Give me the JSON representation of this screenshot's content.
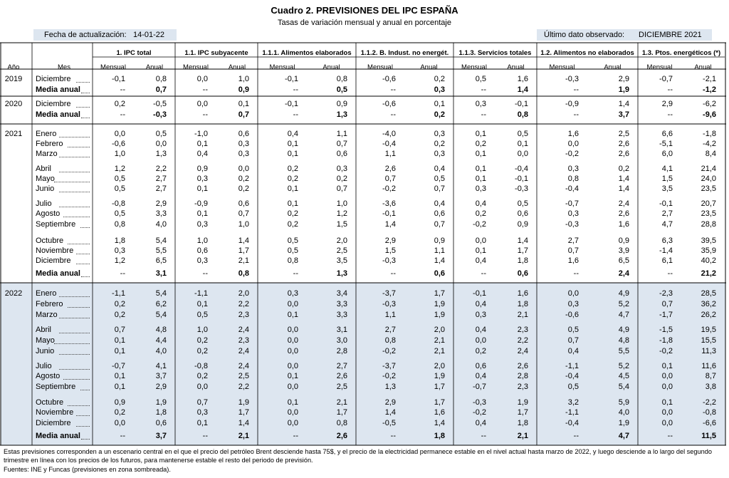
{
  "title": "Cuadro 2. PREVISIONES DEL IPC ESPAÑA",
  "subtitle": "Tasas de variación mensual y anual en porcentaje",
  "update_label": "Fecha de actualización:",
  "update_value": "14-01-22",
  "last_label": "Último dato observado:",
  "last_value": "DICIEMBRE 2021",
  "head": {
    "year": "Año",
    "month": "Mes",
    "groups": [
      "1. IPC total",
      "1.1. IPC subyacente",
      "1.1.1. Alimentos elaborados",
      "1.1.2. B. Indust. no energét.",
      "1.1.3. Servicios totales",
      "1.2. Alimentos no elaborados",
      "1.3. Ptos. energéticos (*)"
    ],
    "mensual": "Mensual",
    "anual": "Anual"
  },
  "rows": [
    {
      "year": "2019",
      "label": "Diciembre",
      "v": [
        "-0,1",
        "0,8",
        "0,0",
        "1,0",
        "-0,1",
        "0,8",
        "-0,6",
        "0,2",
        "0,5",
        "1,6",
        "-0,3",
        "2,9",
        "-0,7",
        "-2,1"
      ]
    },
    {
      "year": "",
      "label": "Media anual",
      "bold": true,
      "v": [
        "--",
        "0,7",
        "--",
        "0,9",
        "--",
        "0,5",
        "--",
        "0,3",
        "--",
        "1,4",
        "--",
        "1,9",
        "--",
        "-1,2"
      ]
    },
    {
      "year": "2020",
      "label": "Diciembre",
      "v": [
        "0,2",
        "-0,5",
        "0,0",
        "0,1",
        "-0,1",
        "0,9",
        "-0,6",
        "0,1",
        "0,3",
        "-0,1",
        "-0,9",
        "1,4",
        "2,9",
        "-6,2"
      ]
    },
    {
      "year": "",
      "label": "Media anual",
      "bold": true,
      "v": [
        "--",
        "-0,3",
        "--",
        "0,7",
        "--",
        "1,3",
        "--",
        "0,2",
        "--",
        "0,8",
        "--",
        "3,7",
        "--",
        "-9,6"
      ]
    },
    {
      "year": "2021",
      "label": "Enero",
      "v": [
        "0,0",
        "0,5",
        "-1,0",
        "0,6",
        "0,4",
        "1,1",
        "-4,0",
        "0,3",
        "0,1",
        "0,5",
        "1,6",
        "2,5",
        "6,6",
        "-1,8"
      ]
    },
    {
      "year": "",
      "label": "Febrero",
      "v": [
        "-0,6",
        "0,0",
        "0,1",
        "0,3",
        "0,1",
        "0,7",
        "-0,4",
        "0,2",
        "0,2",
        "0,1",
        "0,0",
        "2,6",
        "-5,1",
        "-4,2"
      ]
    },
    {
      "year": "",
      "label": "Marzo",
      "v": [
        "1,0",
        "1,3",
        "0,4",
        "0,3",
        "0,1",
        "0,6",
        "1,1",
        "0,3",
        "0,1",
        "0,0",
        "-0,2",
        "2,6",
        "6,0",
        "8,4"
      ]
    },
    {
      "year": "",
      "label": "Abril",
      "v": [
        "1,2",
        "2,2",
        "0,9",
        "0,0",
        "0,2",
        "0,3",
        "2,6",
        "0,4",
        "0,1",
        "-0,4",
        "0,3",
        "0,2",
        "4,1",
        "21,4"
      ]
    },
    {
      "year": "",
      "label": "Mayo",
      "v": [
        "0,5",
        "2,7",
        "0,3",
        "0,2",
        "0,2",
        "0,2",
        "0,7",
        "0,5",
        "0,1",
        "-0,1",
        "0,8",
        "1,4",
        "1,5",
        "24,0"
      ]
    },
    {
      "year": "",
      "label": "Junio",
      "v": [
        "0,5",
        "2,7",
        "0,1",
        "0,2",
        "0,1",
        "0,7",
        "-0,2",
        "0,7",
        "0,3",
        "-0,3",
        "-0,4",
        "1,4",
        "3,5",
        "23,5"
      ]
    },
    {
      "year": "",
      "label": "Julio",
      "v": [
        "-0,8",
        "2,9",
        "-0,9",
        "0,6",
        "0,1",
        "1,0",
        "-3,6",
        "0,4",
        "0,4",
        "0,5",
        "-0,7",
        "2,4",
        "-0,1",
        "20,7"
      ]
    },
    {
      "year": "",
      "label": "Agosto",
      "v": [
        "0,5",
        "3,3",
        "0,1",
        "0,7",
        "0,2",
        "1,2",
        "-0,1",
        "0,6",
        "0,2",
        "0,6",
        "0,3",
        "2,6",
        "2,7",
        "23,5"
      ]
    },
    {
      "year": "",
      "label": "Septiembre",
      "v": [
        "0,8",
        "4,0",
        "0,3",
        "1,0",
        "0,2",
        "1,5",
        "1,4",
        "0,7",
        "-0,2",
        "0,9",
        "-0,3",
        "1,6",
        "4,7",
        "28,8"
      ]
    },
    {
      "year": "",
      "label": "Octubre",
      "v": [
        "1,8",
        "5,4",
        "1,0",
        "1,4",
        "0,5",
        "2,0",
        "2,9",
        "0,9",
        "0,0",
        "1,4",
        "2,7",
        "0,9",
        "6,3",
        "39,5"
      ]
    },
    {
      "year": "",
      "label": "Noviembre",
      "v": [
        "0,3",
        "5,5",
        "0,6",
        "1,7",
        "0,5",
        "2,5",
        "1,5",
        "1,1",
        "0,1",
        "1,7",
        "0,7",
        "3,9",
        "-1,4",
        "35,9"
      ]
    },
    {
      "year": "",
      "label": "Diciembre",
      "v": [
        "1,2",
        "6,5",
        "0,3",
        "2,1",
        "0,8",
        "3,5",
        "-0,3",
        "1,4",
        "0,4",
        "1,8",
        "1,6",
        "6,5",
        "6,1",
        "40,2"
      ]
    },
    {
      "year": "",
      "label": "Media anual",
      "bold": true,
      "v": [
        "--",
        "3,1",
        "--",
        "0,8",
        "--",
        "1,3",
        "--",
        "0,6",
        "--",
        "0,6",
        "--",
        "2,4",
        "--",
        "21,2"
      ]
    },
    {
      "year": "2022",
      "label": "Enero",
      "v": [
        "-1,1",
        "5,4",
        "-1,1",
        "2,0",
        "0,3",
        "3,4",
        "-3,7",
        "1,7",
        "-0,1",
        "1,6",
        "0,0",
        "4,9",
        "-2,3",
        "28,5"
      ]
    },
    {
      "year": "",
      "label": "Febrero",
      "v": [
        "0,2",
        "6,2",
        "0,1",
        "2,2",
        "0,0",
        "3,3",
        "-0,3",
        "1,9",
        "0,4",
        "1,8",
        "0,3",
        "5,2",
        "0,7",
        "36,2"
      ]
    },
    {
      "year": "",
      "label": "Marzo",
      "v": [
        "0,2",
        "5,4",
        "0,5",
        "2,3",
        "0,1",
        "3,3",
        "1,1",
        "1,9",
        "0,3",
        "2,1",
        "-0,6",
        "4,7",
        "-1,7",
        "26,2"
      ]
    },
    {
      "year": "",
      "label": "Abril",
      "v": [
        "0,7",
        "4,8",
        "1,0",
        "2,4",
        "0,0",
        "3,1",
        "2,7",
        "2,0",
        "0,4",
        "2,3",
        "0,5",
        "4,9",
        "-1,5",
        "19,5"
      ]
    },
    {
      "year": "",
      "label": "Mayo",
      "v": [
        "0,1",
        "4,4",
        "0,2",
        "2,3",
        "0,0",
        "3,0",
        "0,8",
        "2,1",
        "0,0",
        "2,2",
        "0,7",
        "4,8",
        "-1,8",
        "15,5"
      ]
    },
    {
      "year": "",
      "label": "Junio",
      "v": [
        "0,1",
        "4,0",
        "0,2",
        "2,4",
        "0,0",
        "2,8",
        "-0,2",
        "2,1",
        "0,2",
        "2,4",
        "0,4",
        "5,5",
        "-0,2",
        "11,3"
      ]
    },
    {
      "year": "",
      "label": "Julio",
      "v": [
        "-0,7",
        "4,1",
        "-0,8",
        "2,4",
        "0,0",
        "2,7",
        "-3,7",
        "2,0",
        "0,6",
        "2,6",
        "-1,1",
        "5,2",
        "0,1",
        "11,6"
      ]
    },
    {
      "year": "",
      "label": "Agosto",
      "v": [
        "0,1",
        "3,7",
        "0,2",
        "2,5",
        "0,1",
        "2,6",
        "-0,2",
        "1,9",
        "0,4",
        "2,8",
        "-0,4",
        "4,5",
        "0,0",
        "8,7"
      ]
    },
    {
      "year": "",
      "label": "Septiembre",
      "v": [
        "0,1",
        "2,9",
        "0,0",
        "2,2",
        "0,0",
        "2,5",
        "1,3",
        "1,7",
        "-0,7",
        "2,3",
        "0,5",
        "5,4",
        "0,0",
        "3,8"
      ]
    },
    {
      "year": "",
      "label": "Octubre",
      "v": [
        "0,9",
        "1,9",
        "0,7",
        "1,9",
        "0,1",
        "2,1",
        "2,9",
        "1,7",
        "-0,3",
        "1,9",
        "3,2",
        "5,9",
        "0,1",
        "-2,2"
      ]
    },
    {
      "year": "",
      "label": "Noviembre",
      "v": [
        "0,2",
        "1,8",
        "0,3",
        "1,7",
        "0,0",
        "1,7",
        "1,4",
        "1,6",
        "-0,2",
        "1,7",
        "-1,1",
        "4,0",
        "0,0",
        "-0,8"
      ]
    },
    {
      "year": "",
      "label": "Diciembre",
      "v": [
        "0,0",
        "0,6",
        "0,1",
        "1,4",
        "0,0",
        "0,8",
        "-0,5",
        "1,4",
        "0,4",
        "1,8",
        "-0,4",
        "1,9",
        "0,0",
        "-6,6"
      ]
    },
    {
      "year": "",
      "label": "Media anual",
      "bold": true,
      "v": [
        "--",
        "3,7",
        "--",
        "2,1",
        "--",
        "2,6",
        "--",
        "1,8",
        "--",
        "2,1",
        "--",
        "4,7",
        "--",
        "11,5"
      ]
    }
  ],
  "footnotes": [
    "Estas previsiones corresponden a un escenario central en el que el precio del petróleo Brent desciende hasta 75$, y el precio de la electricidad permanece estable en el nivel actual hasta marzo de 2022, y luego desciende a lo largo del segundo",
    "trimestre en línea con los precios de los futuros, para mantenerse estable el resto del periodo de previsión.",
    "Fuentes: INE y Funcas (previsiones en zona sombreada)."
  ]
}
